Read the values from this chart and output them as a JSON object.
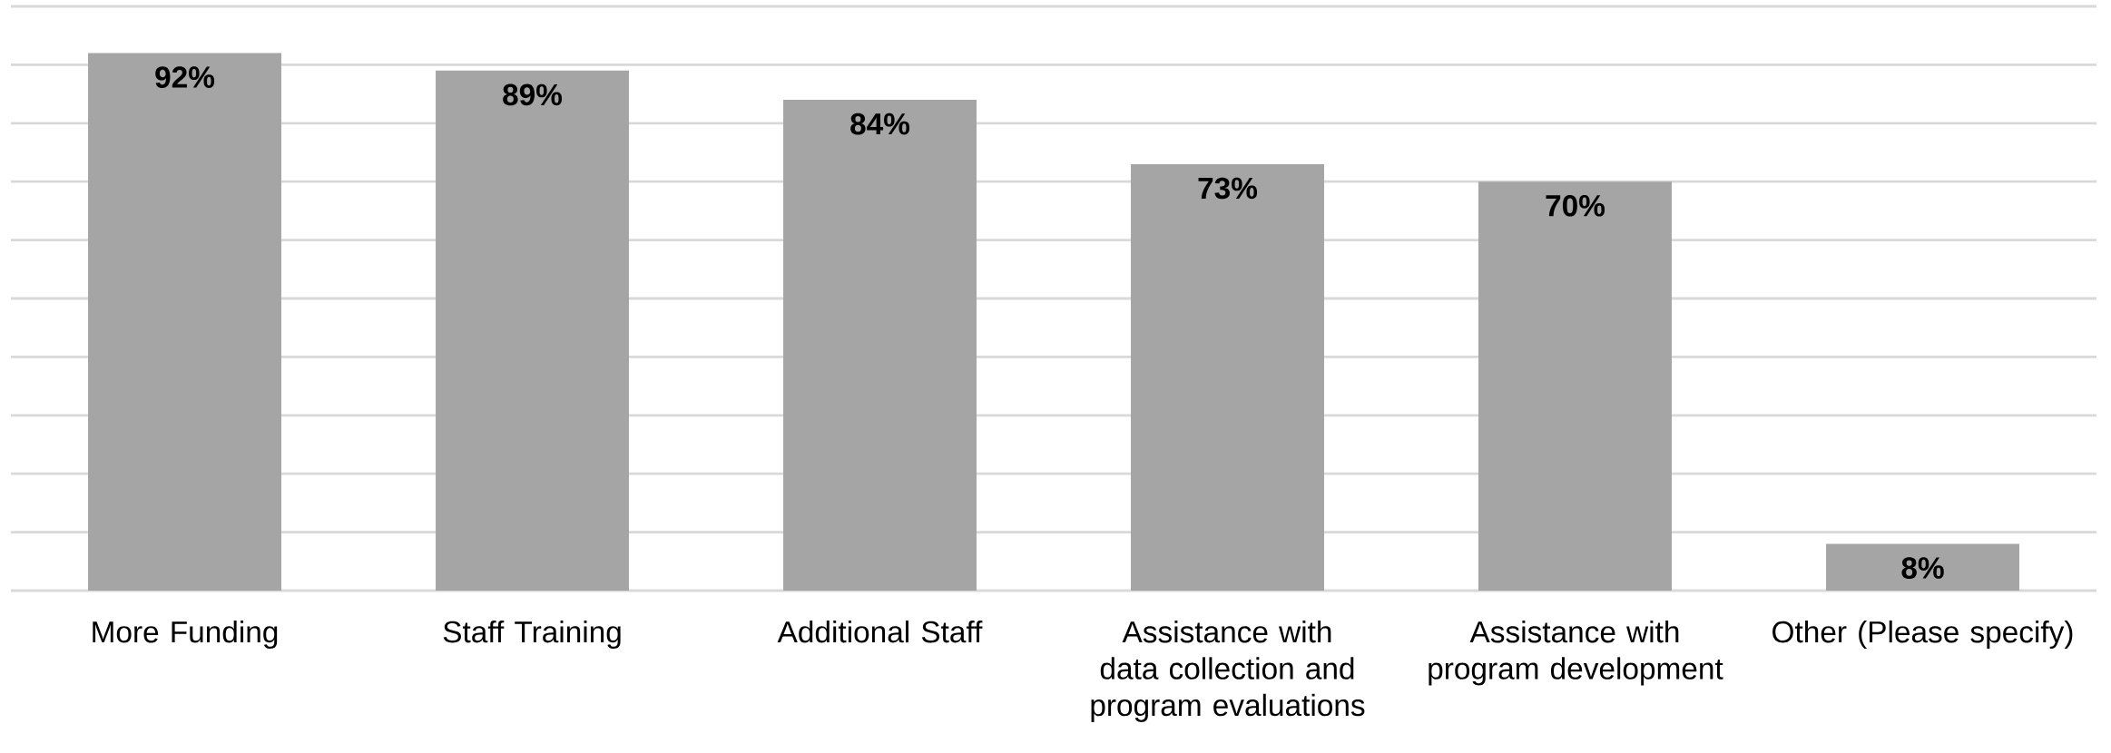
{
  "chart_data": {
    "type": "bar",
    "categories": [
      "More Funding",
      "Staff Training",
      "Additional Staff",
      "Assistance with data collection and program evaluations",
      "Assistance with program development",
      "Other (Please specify)"
    ],
    "values": [
      92,
      89,
      84,
      73,
      70,
      8
    ],
    "value_labels": [
      "92%",
      "89%",
      "84%",
      "73%",
      "70%",
      "8%"
    ],
    "color": "#a5a5a5",
    "ylim": [
      0,
      100
    ],
    "yticks": [
      0,
      10,
      20,
      30,
      40,
      50,
      60,
      70,
      80,
      90,
      100
    ],
    "grid": "y",
    "tick_labels": "x"
  }
}
